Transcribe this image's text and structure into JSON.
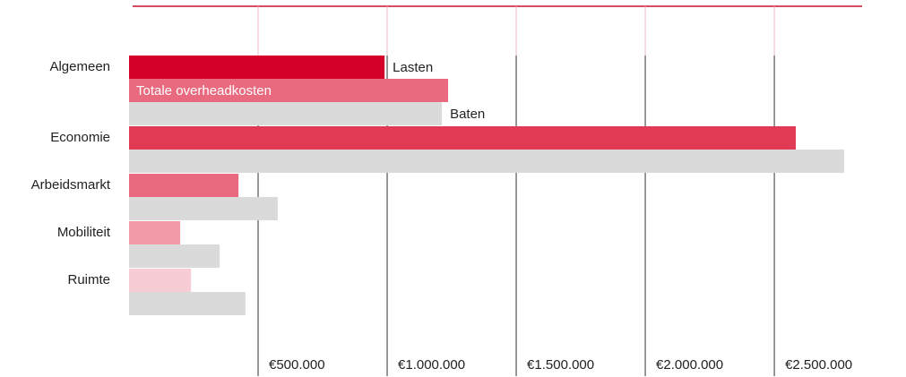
{
  "chart_data": {
    "type": "bar",
    "orientation": "horizontal",
    "categories": [
      "Algemeen",
      "Economie",
      "Arbeidsmarkt",
      "Mobiliteit",
      "Ruimte"
    ],
    "series": [
      {
        "name": "Lasten",
        "color": "#d4002a",
        "values": [
          990000,
          null,
          null,
          null,
          null
        ]
      },
      {
        "name": "Totale overheadkosten",
        "colors": [
          "#e96a7e",
          "#e03a55",
          "#e96a7e",
          "#f19aa8",
          "#f8ccd4"
        ],
        "values": [
          1236000,
          2583000,
          424000,
          198000,
          240000
        ]
      },
      {
        "name": "Baten",
        "color": "#dadada",
        "values": [
          1212000,
          2771000,
          576000,
          351000,
          451000
        ]
      }
    ],
    "xlim": [
      0,
      2840000
    ],
    "xticks": [
      {
        "value": 500000,
        "label": "€500.000"
      },
      {
        "value": 1000000,
        "label": "€1.000.000"
      },
      {
        "value": 1500000,
        "label": "€1.500.000"
      },
      {
        "value": 2000000,
        "label": "€2.000.000"
      },
      {
        "value": 2500000,
        "label": "€2.500.000"
      }
    ],
    "grid": true
  }
}
